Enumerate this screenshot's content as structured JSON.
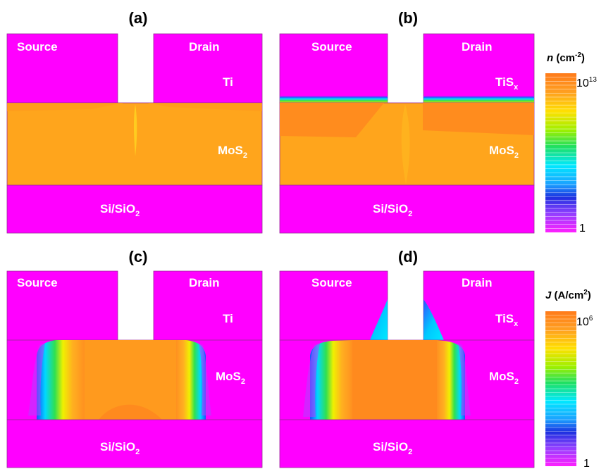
{
  "panels": {
    "a": {
      "label": "(a)",
      "source": "Source",
      "drain": "Drain",
      "metal": "Ti",
      "semiconductor": "MoS",
      "semiconductor_sub": "2",
      "substrate": "Si/SiO",
      "substrate_sub": "2"
    },
    "b": {
      "label": "(b)",
      "source": "Source",
      "drain": "Drain",
      "metal": "TiS",
      "metal_sub": "x",
      "semiconductor": "MoS",
      "semiconductor_sub": "2",
      "substrate": "Si/SiO",
      "substrate_sub": "2"
    },
    "c": {
      "label": "(c)",
      "source": "Source",
      "drain": "Drain",
      "metal": "Ti",
      "semiconductor": "MoS",
      "semiconductor_sub": "2",
      "substrate": "Si/SiO",
      "substrate_sub": "2"
    },
    "d": {
      "label": "(d)",
      "source": "Source",
      "drain": "Drain",
      "metal": "TiS",
      "metal_sub": "x",
      "semiconductor": "MoS",
      "semiconductor_sub": "2",
      "substrate": "Si/SiO",
      "substrate_sub": "2"
    }
  },
  "colorbars": {
    "n": {
      "symbol": "n",
      "unit": " (cm",
      "unit_sup": "-2",
      "unit_close": ")",
      "max": "10",
      "max_sup": "13",
      "min": "1"
    },
    "J": {
      "symbol": "J",
      "unit": " (A/cm",
      "unit_sup": "2",
      "unit_close": ")",
      "max": "10",
      "max_sup": "6",
      "min": "1"
    }
  },
  "colors": {
    "magenta": "#ff00ff",
    "orange_dark": "#ff8a1e",
    "orange_mid": "#ffa51c",
    "yellow": "#f2e600",
    "green": "#44e04a",
    "cyan": "#00e6ff",
    "blue": "#3060ff",
    "violet": "#b040ff"
  }
}
